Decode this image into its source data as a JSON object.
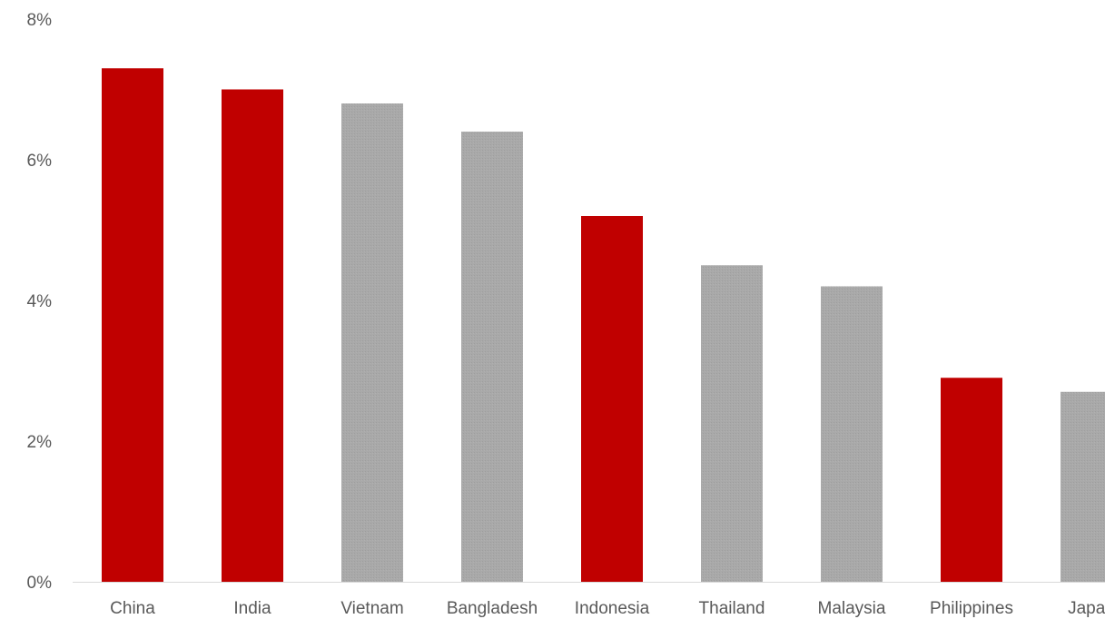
{
  "chart_data": {
    "type": "bar",
    "categories": [
      "China",
      "India",
      "Vietnam",
      "Bangladesh",
      "Indonesia",
      "Thailand",
      "Malaysia",
      "Philippines",
      "Japan"
    ],
    "values": [
      7.3,
      7.0,
      6.8,
      6.4,
      5.2,
      4.5,
      4.2,
      2.9,
      2.7
    ],
    "highlighted": [
      true,
      true,
      false,
      false,
      true,
      false,
      false,
      true,
      false
    ],
    "ylim": [
      0,
      8
    ],
    "yticks": [
      "0%",
      "2%",
      "4%",
      "6%",
      "8%"
    ],
    "ytick_values": [
      0,
      2,
      4,
      6,
      8
    ],
    "grid": false,
    "legend": "none"
  },
  "colors": {
    "highlight": "#C00000",
    "default": "#A6A6A6",
    "axis": "#D9D9D9",
    "text": "#595959"
  }
}
